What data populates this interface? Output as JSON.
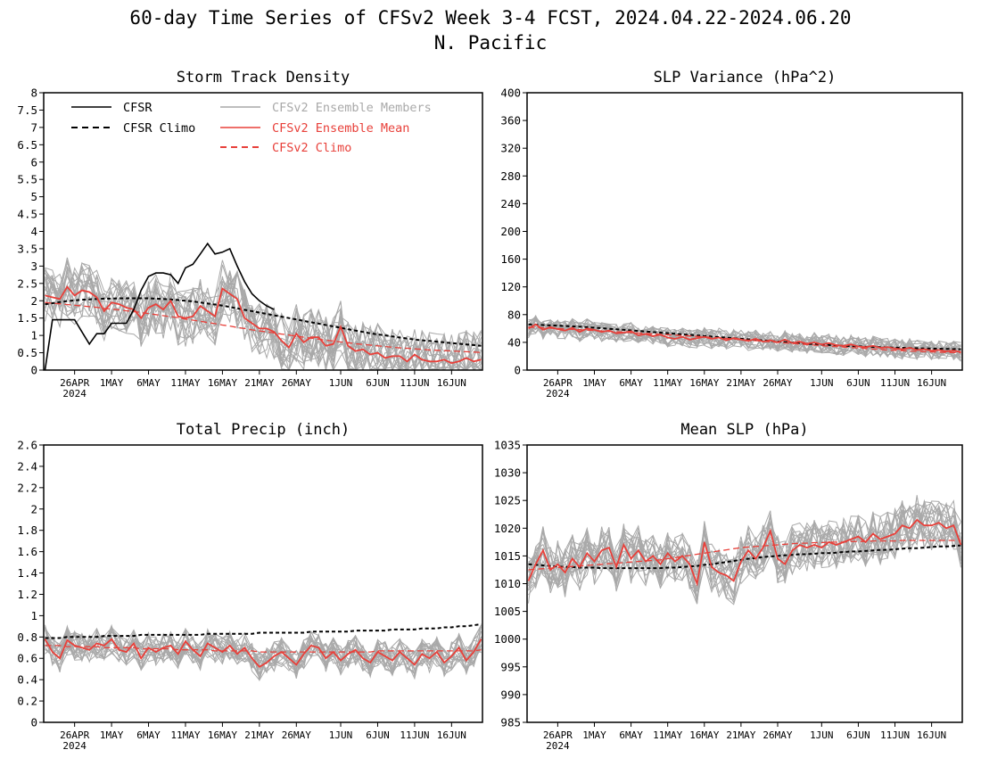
{
  "title": "60-day Time Series of CFSv2 Week 3-4 FCST, 2024.04.22-2024.06.20",
  "subtitle": "N. Pacific",
  "colors": {
    "cfsr": "#000000",
    "members": "#a9a9a9",
    "ens_mean": "#e8403a",
    "frame": "#000000"
  },
  "legend": {
    "placement": "top-left of Storm Track Density panel",
    "entries": [
      {
        "label": "CFSR",
        "style": "solid",
        "color": "#000000"
      },
      {
        "label": "CFSR Climo",
        "style": "dashed",
        "color": "#000000"
      },
      {
        "label": "CFSv2 Ensemble Members",
        "style": "solid",
        "color": "#a9a9a9"
      },
      {
        "label": "CFSv2 Ensemble Mean",
        "style": "solid",
        "color": "#e8403a"
      },
      {
        "label": "CFSv2 Climo",
        "style": "dashed",
        "color": "#e8403a"
      }
    ]
  },
  "chart_data": [
    {
      "type": "line",
      "title": "Storm Track Density",
      "ylim": [
        0,
        8
      ],
      "yticks": [
        "0",
        "0.5",
        "1",
        "1.5",
        "2",
        "2.5",
        "3",
        "3.5",
        "4",
        "4.5",
        "5",
        "5.5",
        "6",
        "6.5",
        "7",
        "7.5",
        "8"
      ],
      "x_start": "2024-04-22",
      "x_end": "2024-06-20",
      "xticks": [
        "26APR",
        "1MAY",
        "6MAY",
        "11MAY",
        "16MAY",
        "21MAY",
        "26MAY",
        "1JUN",
        "6JUN",
        "11JUN",
        "16JUN"
      ],
      "x_year_label": "2024",
      "series": [
        {
          "name": "CFSR",
          "x_start": "2024-04-22",
          "values": [
            0.0,
            1.45,
            1.45,
            1.45,
            1.45,
            1.1,
            0.75,
            1.05,
            1.05,
            1.35,
            1.35,
            1.35,
            1.75,
            2.3,
            2.7,
            2.8,
            2.8,
            2.75,
            2.5,
            2.95,
            3.05,
            3.35,
            3.65,
            3.35,
            3.4,
            3.5,
            3.0,
            2.55,
            2.2,
            2.0,
            1.85,
            1.75
          ]
        },
        {
          "name": "CFSR Climo",
          "x_start": "2024-04-22",
          "values": [
            1.9,
            1.93,
            1.96,
            1.99,
            2.01,
            2.03,
            2.04,
            2.05,
            2.06,
            2.06,
            2.07,
            2.07,
            2.07,
            2.07,
            2.07,
            2.06,
            2.05,
            2.04,
            2.02,
            2.0,
            1.98,
            1.95,
            1.92,
            1.89,
            1.86,
            1.82,
            1.78,
            1.74,
            1.7,
            1.66,
            1.62,
            1.58,
            1.54,
            1.5,
            1.46,
            1.42,
            1.38,
            1.34,
            1.3,
            1.26,
            1.22,
            1.18,
            1.14,
            1.1,
            1.06,
            1.03,
            1.0,
            0.97,
            0.94,
            0.91,
            0.88,
            0.86,
            0.84,
            0.82,
            0.8,
            0.78,
            0.76,
            0.74,
            0.72,
            0.7
          ]
        },
        {
          "name": "CFSv2 Ensemble Mean",
          "x_start": "2024-04-22",
          "values": [
            2.15,
            2.1,
            2.05,
            2.4,
            2.15,
            2.3,
            2.25,
            2.1,
            1.7,
            1.95,
            1.9,
            1.8,
            1.75,
            1.5,
            1.8,
            1.9,
            1.75,
            2.0,
            1.55,
            1.5,
            1.55,
            1.85,
            1.7,
            1.55,
            2.35,
            2.2,
            2.05,
            1.5,
            1.35,
            1.2,
            1.2,
            1.1,
            0.85,
            0.65,
            1.05,
            0.8,
            0.95,
            0.95,
            0.7,
            0.75,
            1.25,
            0.7,
            0.55,
            0.6,
            0.45,
            0.5,
            0.35,
            0.4,
            0.4,
            0.25,
            0.45,
            0.3,
            0.25,
            0.25,
            0.3,
            0.2,
            0.25,
            0.35,
            0.25,
            0.3
          ]
        },
        {
          "name": "CFSv2 Climo",
          "x_start": "2024-04-22",
          "values": [
            1.95,
            1.93,
            1.91,
            1.89,
            1.87,
            1.85,
            1.83,
            1.81,
            1.78,
            1.76,
            1.74,
            1.71,
            1.69,
            1.66,
            1.63,
            1.6,
            1.57,
            1.54,
            1.51,
            1.47,
            1.44,
            1.41,
            1.37,
            1.34,
            1.3,
            1.27,
            1.23,
            1.2,
            1.16,
            1.13,
            1.1,
            1.07,
            1.04,
            1.01,
            0.98,
            0.95,
            0.92,
            0.89,
            0.86,
            0.84,
            0.81,
            0.79,
            0.76,
            0.74,
            0.72,
            0.7,
            0.68,
            0.66,
            0.64,
            0.63,
            0.61,
            0.6,
            0.58,
            0.57,
            0.56,
            0.55,
            0.54,
            0.53,
            0.52,
            0.51
          ]
        },
        {
          "name": "CFSv2 Ensemble Members",
          "count": 20,
          "center_series": "CFSv2 Ensemble Mean",
          "spread": 0.85
        }
      ]
    },
    {
      "type": "line",
      "title": "SLP Variance (hPa^2)",
      "ylim": [
        0,
        400
      ],
      "yticks": [
        "0",
        "40",
        "80",
        "120",
        "160",
        "200",
        "240",
        "280",
        "320",
        "360",
        "400"
      ],
      "x_start": "2024-04-22",
      "x_end": "2024-06-20",
      "xticks": [
        "26APR",
        "1MAY",
        "6MAY",
        "11MAY",
        "16MAY",
        "21MAY",
        "26MAY",
        "1JUN",
        "6JUN",
        "11JUN",
        "16JUN"
      ],
      "x_year_label": "2024",
      "series": [
        {
          "name": "CFSR Climo",
          "x_start": "2024-04-22",
          "values": [
            66,
            65.5,
            65,
            64.5,
            64,
            63.5,
            63,
            62.5,
            62,
            61.2,
            60.4,
            59.6,
            58.8,
            58,
            57.2,
            56.4,
            55.6,
            54.8,
            54,
            53.2,
            52.4,
            51.6,
            50.8,
            50,
            49.2,
            48.4,
            47.6,
            46.8,
            46,
            45.2,
            44.4,
            43.6,
            42.8,
            42,
            41.2,
            40.4,
            39.6,
            38.8,
            38,
            37.4,
            36.8,
            36.2,
            35.6,
            35,
            34.6,
            34.2,
            33.8,
            33.4,
            33,
            32.7,
            32.4,
            32.1,
            31.8,
            31.5,
            31.2,
            31,
            30.8,
            30.6,
            30.4,
            30.2
          ]
        },
        {
          "name": "CFSv2 Ensemble Mean",
          "x_start": "2024-04-22",
          "values": [
            60,
            66,
            58,
            62,
            59,
            57,
            61,
            55,
            60,
            58,
            55,
            57,
            53,
            54,
            56,
            50,
            52,
            49,
            51,
            47,
            45,
            48,
            44,
            46,
            48,
            45,
            47,
            43,
            46,
            44,
            42,
            45,
            41,
            43,
            40,
            44,
            39,
            41,
            38,
            40,
            37,
            39,
            36,
            35,
            37,
            34,
            33,
            35,
            32,
            33,
            31,
            30,
            32,
            29,
            30,
            28,
            29,
            27,
            28,
            26
          ]
        },
        {
          "name": "CFSv2 Climo",
          "x_start": "2024-04-22",
          "values": [
            62,
            61.5,
            61,
            60.5,
            60,
            59.4,
            58.8,
            58.2,
            57.6,
            57,
            56.4,
            55.8,
            55.2,
            54.6,
            54,
            53.4,
            52.8,
            52.2,
            51.6,
            51,
            50.4,
            49.8,
            49.2,
            48.6,
            48,
            47.2,
            46.4,
            45.6,
            44.8,
            44,
            43.2,
            42.4,
            41.6,
            40.8,
            40,
            39.2,
            38.4,
            37.6,
            36.8,
            36,
            35.3,
            34.6,
            33.9,
            33.2,
            32.5,
            31.8,
            31.1,
            30.4,
            29.7,
            29,
            28.5,
            28,
            27.5,
            27,
            26.5,
            26.2,
            25.9,
            25.6,
            25.3,
            25
          ]
        },
        {
          "name": "CFSv2 Ensemble Members",
          "count": 20,
          "center_series": "CFSv2 Ensemble Mean",
          "spread": 14
        }
      ]
    },
    {
      "type": "line",
      "title": "Total Precip (inch)",
      "ylim": [
        0,
        2.6
      ],
      "yticks": [
        "0",
        "0.2",
        "0.4",
        "0.6",
        "0.8",
        "1",
        "1.2",
        "1.4",
        "1.6",
        "1.8",
        "2",
        "2.2",
        "2.4",
        "2.6"
      ],
      "x_start": "2024-04-22",
      "x_end": "2024-06-20",
      "xticks": [
        "26APR",
        "1MAY",
        "6MAY",
        "11MAY",
        "16MAY",
        "21MAY",
        "26MAY",
        "1JUN",
        "6JUN",
        "11JUN",
        "16JUN"
      ],
      "x_year_label": "2024",
      "series": [
        {
          "name": "CFSR Climo",
          "x_start": "2024-04-22",
          "values": [
            0.79,
            0.79,
            0.79,
            0.8,
            0.8,
            0.8,
            0.8,
            0.8,
            0.81,
            0.81,
            0.81,
            0.81,
            0.81,
            0.82,
            0.82,
            0.82,
            0.82,
            0.82,
            0.82,
            0.82,
            0.82,
            0.82,
            0.83,
            0.83,
            0.83,
            0.83,
            0.83,
            0.83,
            0.83,
            0.84,
            0.84,
            0.84,
            0.84,
            0.84,
            0.84,
            0.84,
            0.85,
            0.85,
            0.85,
            0.85,
            0.85,
            0.85,
            0.86,
            0.86,
            0.86,
            0.86,
            0.86,
            0.87,
            0.87,
            0.87,
            0.87,
            0.88,
            0.88,
            0.88,
            0.89,
            0.89,
            0.9,
            0.9,
            0.91,
            0.92
          ]
        },
        {
          "name": "CFSv2 Ensemble Mean",
          "x_start": "2024-04-22",
          "values": [
            0.78,
            0.66,
            0.6,
            0.77,
            0.72,
            0.7,
            0.68,
            0.74,
            0.72,
            0.78,
            0.68,
            0.66,
            0.74,
            0.6,
            0.7,
            0.66,
            0.7,
            0.72,
            0.64,
            0.76,
            0.68,
            0.62,
            0.74,
            0.7,
            0.66,
            0.72,
            0.64,
            0.7,
            0.6,
            0.52,
            0.56,
            0.62,
            0.66,
            0.6,
            0.54,
            0.64,
            0.72,
            0.7,
            0.6,
            0.66,
            0.58,
            0.64,
            0.68,
            0.6,
            0.56,
            0.66,
            0.62,
            0.58,
            0.66,
            0.6,
            0.54,
            0.64,
            0.6,
            0.66,
            0.56,
            0.62,
            0.7,
            0.58,
            0.66,
            0.78
          ]
        },
        {
          "name": "CFSv2 Climo",
          "x_start": "2024-04-22",
          "values": [
            0.72,
            0.72,
            0.72,
            0.71,
            0.71,
            0.71,
            0.71,
            0.71,
            0.7,
            0.7,
            0.7,
            0.7,
            0.7,
            0.69,
            0.69,
            0.69,
            0.69,
            0.69,
            0.68,
            0.68,
            0.68,
            0.68,
            0.68,
            0.67,
            0.67,
            0.67,
            0.67,
            0.67,
            0.67,
            0.66,
            0.66,
            0.66,
            0.66,
            0.66,
            0.66,
            0.66,
            0.66,
            0.66,
            0.66,
            0.66,
            0.66,
            0.66,
            0.66,
            0.66,
            0.66,
            0.67,
            0.67,
            0.67,
            0.67,
            0.67,
            0.67,
            0.67,
            0.67,
            0.67,
            0.67,
            0.67,
            0.67,
            0.67,
            0.67,
            0.68
          ]
        },
        {
          "name": "CFSv2 Ensemble Members",
          "count": 20,
          "center_series": "CFSv2 Ensemble Mean",
          "spread": 0.14
        }
      ]
    },
    {
      "type": "line",
      "title": "Mean SLP (hPa)",
      "ylim": [
        985,
        1035
      ],
      "yticks": [
        "985",
        "990",
        "995",
        "1000",
        "1005",
        "1010",
        "1015",
        "1020",
        "1025",
        "1030",
        "1035"
      ],
      "x_start": "2024-04-22",
      "x_end": "2024-06-20",
      "xticks": [
        "26APR",
        "1MAY",
        "6MAY",
        "11MAY",
        "16MAY",
        "21MAY",
        "26MAY",
        "1JUN",
        "6JUN",
        "11JUN",
        "16JUN"
      ],
      "x_year_label": "2024",
      "series": [
        {
          "name": "CFSR Climo",
          "x_start": "2024-04-22",
          "values": [
            1013.5,
            1013.4,
            1013.3,
            1013.2,
            1013.1,
            1013.0,
            1013.0,
            1012.9,
            1012.9,
            1012.9,
            1012.8,
            1012.8,
            1012.8,
            1012.8,
            1012.8,
            1012.8,
            1012.8,
            1012.8,
            1012.8,
            1012.9,
            1012.9,
            1013.0,
            1013.1,
            1013.2,
            1013.4,
            1013.5,
            1013.7,
            1013.9,
            1014.1,
            1014.3,
            1014.5,
            1014.6,
            1014.8,
            1014.9,
            1015.0,
            1015.1,
            1015.2,
            1015.3,
            1015.3,
            1015.4,
            1015.5,
            1015.5,
            1015.6,
            1015.7,
            1015.8,
            1015.8,
            1015.9,
            1016.0,
            1016.1,
            1016.1,
            1016.2,
            1016.3,
            1016.4,
            1016.4,
            1016.5,
            1016.6,
            1016.7,
            1016.7,
            1016.8,
            1016.9
          ]
        },
        {
          "name": "CFSv2 Ensemble Mean",
          "x_start": "2024-04-22",
          "values": [
            1010.5,
            1013.5,
            1016,
            1012.5,
            1013.5,
            1012,
            1014.5,
            1013,
            1015.5,
            1014,
            1016,
            1016.5,
            1013,
            1017,
            1014.5,
            1016,
            1014,
            1015,
            1013.5,
            1015.5,
            1014,
            1015,
            1013.5,
            1010,
            1017.5,
            1013,
            1012,
            1011.5,
            1010.5,
            1014,
            1016,
            1014.5,
            1016.5,
            1019.5,
            1014.5,
            1013.5,
            1016,
            1017,
            1016.5,
            1017,
            1016.5,
            1017.5,
            1017,
            1017.5,
            1018,
            1018.5,
            1017.5,
            1019,
            1018,
            1018.5,
            1019,
            1020.5,
            1020,
            1021.5,
            1020.5,
            1020.5,
            1021,
            1020,
            1020.5,
            1017
          ]
        },
        {
          "name": "CFSv2 Climo",
          "x_start": "2024-04-22",
          "values": [
            1012.5,
            1012.6,
            1012.7,
            1012.8,
            1012.9,
            1013.0,
            1013.1,
            1013.2,
            1013.3,
            1013.4,
            1013.5,
            1013.6,
            1013.7,
            1013.8,
            1013.9,
            1014.0,
            1014.1,
            1014.2,
            1014.3,
            1014.5,
            1014.7,
            1014.9,
            1015.1,
            1015.3,
            1015.5,
            1015.7,
            1015.9,
            1016.1,
            1016.3,
            1016.5,
            1016.6,
            1016.7,
            1016.8,
            1016.9,
            1017.0,
            1017.1,
            1017.2,
            1017.3,
            1017.3,
            1017.4,
            1017.4,
            1017.5,
            1017.5,
            1017.5,
            1017.6,
            1017.6,
            1017.6,
            1017.7,
            1017.7,
            1017.7,
            1017.7,
            1017.8,
            1017.8,
            1017.8,
            1017.8,
            1017.8,
            1017.8,
            1017.8,
            1017.8,
            1017.8
          ]
        },
        {
          "name": "CFSv2 Ensemble Members",
          "count": 20,
          "center_series": "CFSv2 Ensemble Mean",
          "spread": 4.5
        }
      ]
    }
  ]
}
